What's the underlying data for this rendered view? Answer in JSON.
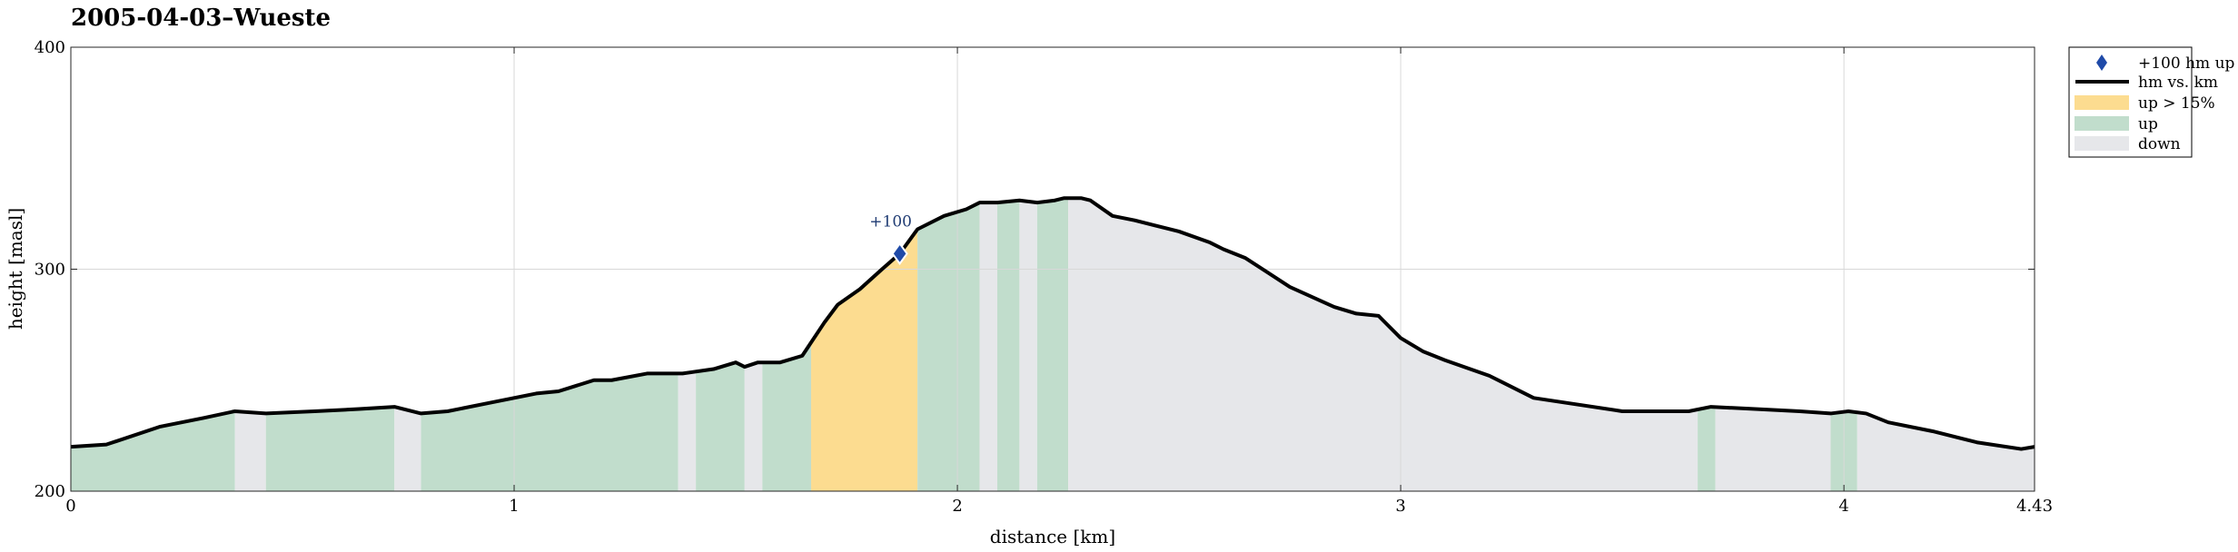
{
  "chart_data": {
    "type": "area",
    "title": "2005-04-03–Wueste",
    "xlabel": "distance [km]",
    "ylabel": "height [masl]",
    "xlim": [
      0,
      4.43
    ],
    "ylim": [
      200,
      400
    ],
    "x_ticks": [
      0,
      1,
      2,
      3,
      4,
      4.43
    ],
    "x_tick_labels": [
      "0",
      "1",
      "2",
      "3",
      "4",
      "4.43"
    ],
    "y_ticks": [
      200,
      300,
      400
    ],
    "y_tick_labels": [
      "200",
      "300",
      "400"
    ],
    "grid": true,
    "legend_position": "outside-top-right",
    "legend": [
      {
        "key": "marker",
        "label": "+100 hm up"
      },
      {
        "key": "line",
        "label": "hm vs. km"
      },
      {
        "key": "steep",
        "label": "up > 15%"
      },
      {
        "key": "up",
        "label": "up"
      },
      {
        "key": "down",
        "label": "down"
      }
    ],
    "colors": {
      "line": "#000000",
      "steep": "#fcdc90",
      "up": "#c1ddcc",
      "down": "#e6e7ea",
      "marker": "#1f4aa8",
      "grid": "#d8d8d8"
    },
    "profile": {
      "x": [
        0,
        0.08,
        0.2,
        0.3,
        0.37,
        0.44,
        0.55,
        0.65,
        0.73,
        0.79,
        0.85,
        0.95,
        1.05,
        1.1,
        1.18,
        1.22,
        1.3,
        1.38,
        1.45,
        1.5,
        1.52,
        1.55,
        1.6,
        1.65,
        1.7,
        1.73,
        1.78,
        1.83,
        1.87,
        1.91,
        1.97,
        2.02,
        2.05,
        2.09,
        2.14,
        2.18,
        2.22,
        2.24,
        2.28,
        2.3,
        2.35,
        2.4,
        2.5,
        2.57,
        2.6,
        2.65,
        2.75,
        2.85,
        2.9,
        2.95,
        3.0,
        3.05,
        3.1,
        3.2,
        3.3,
        3.5,
        3.65,
        3.7,
        3.8,
        3.9,
        3.97,
        4.01,
        4.05,
        4.1,
        4.2,
        4.3,
        4.4,
        4.43
      ],
      "y": [
        220,
        221,
        229,
        233,
        236,
        235,
        236,
        237,
        238,
        235,
        236,
        240,
        244,
        245,
        250,
        250,
        253,
        253,
        255,
        258,
        256,
        258,
        258,
        261,
        276,
        284,
        291,
        300,
        307,
        318,
        324,
        327,
        330,
        330,
        331,
        330,
        331,
        332,
        332,
        331,
        324,
        322,
        317,
        312,
        309,
        305,
        292,
        283,
        280,
        279,
        269,
        263,
        259,
        252,
        242,
        236,
        236,
        238,
        237,
        236,
        235,
        236,
        235,
        231,
        227,
        222,
        219,
        220
      ]
    },
    "segments": [
      {
        "from": 0.0,
        "to": 0.37,
        "kind": "up"
      },
      {
        "from": 0.37,
        "to": 0.44,
        "kind": "down"
      },
      {
        "from": 0.44,
        "to": 0.73,
        "kind": "up"
      },
      {
        "from": 0.73,
        "to": 0.79,
        "kind": "down"
      },
      {
        "from": 0.79,
        "to": 1.37,
        "kind": "up"
      },
      {
        "from": 1.37,
        "to": 1.41,
        "kind": "down"
      },
      {
        "from": 1.41,
        "to": 1.52,
        "kind": "up"
      },
      {
        "from": 1.52,
        "to": 1.56,
        "kind": "down"
      },
      {
        "from": 1.56,
        "to": 1.67,
        "kind": "up"
      },
      {
        "from": 1.67,
        "to": 1.91,
        "kind": "steep"
      },
      {
        "from": 1.91,
        "to": 2.05,
        "kind": "up"
      },
      {
        "from": 2.05,
        "to": 2.09,
        "kind": "down"
      },
      {
        "from": 2.09,
        "to": 2.14,
        "kind": "up"
      },
      {
        "from": 2.14,
        "to": 2.18,
        "kind": "down"
      },
      {
        "from": 2.18,
        "to": 2.25,
        "kind": "up"
      },
      {
        "from": 2.25,
        "to": 3.67,
        "kind": "down"
      },
      {
        "from": 3.67,
        "to": 3.71,
        "kind": "up"
      },
      {
        "from": 3.71,
        "to": 3.97,
        "kind": "down"
      },
      {
        "from": 3.97,
        "to": 4.03,
        "kind": "up"
      },
      {
        "from": 4.03,
        "to": 4.43,
        "kind": "down"
      }
    ],
    "markers": [
      {
        "x": 1.87,
        "y": 307,
        "label": "+100"
      }
    ]
  }
}
